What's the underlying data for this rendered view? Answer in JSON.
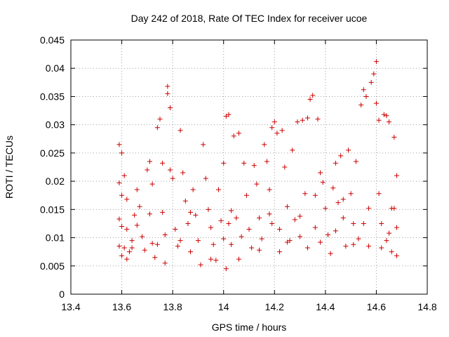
{
  "chart_data": {
    "type": "scatter",
    "title": "Day 242 of 2018, Rate Of TEC Index for receiver ucoe",
    "xlabel": "GPS time / hours",
    "ylabel": "ROTI / TECUs",
    "xlim": [
      13.4,
      14.8
    ],
    "ylim": [
      0,
      0.045
    ],
    "x_ticks": [
      13.4,
      13.6,
      13.8,
      14,
      14.2,
      14.4,
      14.6,
      14.8
    ],
    "x_tick_labels": [
      "13.4",
      "13.6",
      "13.8",
      "14",
      "14.2",
      "14.4",
      "14.6",
      "14.8"
    ],
    "y_ticks": [
      0,
      0.005,
      0.01,
      0.015,
      0.02,
      0.025,
      0.03,
      0.035,
      0.04,
      0.045
    ],
    "y_tick_labels": [
      "0",
      "0.005",
      "0.01",
      "0.015",
      "0.02",
      "0.025",
      "0.03",
      "0.035",
      "0.04",
      "0.045"
    ],
    "grid": true,
    "marker": "+",
    "series": [
      {
        "name": "ROTI",
        "color": "#cc0000",
        "points": [
          [
            13.59,
            0.0265
          ],
          [
            13.6,
            0.025
          ],
          [
            13.59,
            0.0197
          ],
          [
            13.61,
            0.021
          ],
          [
            13.6,
            0.0175
          ],
          [
            13.62,
            0.0168
          ],
          [
            13.59,
            0.0133
          ],
          [
            13.6,
            0.012
          ],
          [
            13.62,
            0.0115
          ],
          [
            13.59,
            0.0085
          ],
          [
            13.61,
            0.0082
          ],
          [
            13.63,
            0.0075
          ],
          [
            13.6,
            0.0068
          ],
          [
            13.62,
            0.0062
          ],
          [
            13.64,
            0.0095
          ],
          [
            13.65,
            0.014
          ],
          [
            13.66,
            0.0185
          ],
          [
            13.67,
            0.0155
          ],
          [
            13.68,
            0.0102
          ],
          [
            13.69,
            0.0078
          ],
          [
            13.7,
            0.022
          ],
          [
            13.71,
            0.0235
          ],
          [
            13.72,
            0.0195
          ],
          [
            13.72,
            0.009
          ],
          [
            13.73,
            0.0065
          ],
          [
            13.74,
            0.0295
          ],
          [
            13.75,
            0.031
          ],
          [
            13.76,
            0.0232
          ],
          [
            13.76,
            0.0145
          ],
          [
            13.77,
            0.0105
          ],
          [
            13.77,
            0.0055
          ],
          [
            13.78,
            0.0368
          ],
          [
            13.78,
            0.0355
          ],
          [
            13.79,
            0.033
          ],
          [
            13.79,
            0.022
          ],
          [
            13.8,
            0.0205
          ],
          [
            13.81,
            0.0115
          ],
          [
            13.82,
            0.0085
          ],
          [
            13.83,
            0.029
          ],
          [
            13.84,
            0.0215
          ],
          [
            13.85,
            0.0165
          ],
          [
            13.86,
            0.0125
          ],
          [
            13.87,
            0.0075
          ],
          [
            13.88,
            0.0185
          ],
          [
            13.89,
            0.014
          ],
          [
            13.9,
            0.0095
          ],
          [
            13.91,
            0.0052
          ],
          [
            13.92,
            0.0265
          ],
          [
            13.93,
            0.0205
          ],
          [
            13.94,
            0.015
          ],
          [
            13.95,
            0.0118
          ],
          [
            13.96,
            0.0088
          ],
          [
            13.97,
            0.006
          ],
          [
            13.98,
            0.0185
          ],
          [
            13.99,
            0.013
          ],
          [
            14.0,
            0.0232
          ],
          [
            14.0,
            0.0098
          ],
          [
            14.01,
            0.0315
          ],
          [
            14.01,
            0.0045
          ],
          [
            14.02,
            0.0318
          ],
          [
            14.02,
            0.0125
          ],
          [
            14.03,
            0.0088
          ],
          [
            14.04,
            0.028
          ],
          [
            14.05,
            0.0135
          ],
          [
            14.06,
            0.0285
          ],
          [
            14.06,
            0.0062
          ],
          [
            14.08,
            0.0232
          ],
          [
            14.09,
            0.0175
          ],
          [
            14.1,
            0.0115
          ],
          [
            14.11,
            0.0082
          ],
          [
            14.12,
            0.0228
          ],
          [
            14.13,
            0.0195
          ],
          [
            14.14,
            0.0135
          ],
          [
            14.15,
            0.0098
          ],
          [
            14.16,
            0.0265
          ],
          [
            14.17,
            0.0235
          ],
          [
            14.18,
            0.0185
          ],
          [
            14.19,
            0.0295
          ],
          [
            14.19,
            0.0125
          ],
          [
            14.2,
            0.0305
          ],
          [
            14.21,
            0.0285
          ],
          [
            14.22,
            0.0115
          ],
          [
            14.22,
            0.0075
          ],
          [
            14.23,
            0.029
          ],
          [
            14.24,
            0.0225
          ],
          [
            14.25,
            0.0155
          ],
          [
            14.26,
            0.0095
          ],
          [
            14.27,
            0.0255
          ],
          [
            14.28,
            0.0132
          ],
          [
            14.29,
            0.0305
          ],
          [
            14.3,
            0.0102
          ],
          [
            14.31,
            0.0308
          ],
          [
            14.32,
            0.0178
          ],
          [
            14.33,
            0.0312
          ],
          [
            14.33,
            0.0082
          ],
          [
            14.34,
            0.0345
          ],
          [
            14.35,
            0.0352
          ],
          [
            14.36,
            0.0175
          ],
          [
            14.36,
            0.0118
          ],
          [
            14.37,
            0.031
          ],
          [
            14.38,
            0.0215
          ],
          [
            14.39,
            0.0198
          ],
          [
            14.4,
            0.0152
          ],
          [
            14.41,
            0.0105
          ],
          [
            14.42,
            0.0072
          ],
          [
            14.43,
            0.0188
          ],
          [
            14.44,
            0.0232
          ],
          [
            14.45,
            0.0162
          ],
          [
            14.46,
            0.0245
          ],
          [
            14.47,
            0.0135
          ],
          [
            14.48,
            0.0085
          ],
          [
            14.49,
            0.0255
          ],
          [
            14.5,
            0.0178
          ],
          [
            14.51,
            0.0125
          ],
          [
            14.52,
            0.0235
          ],
          [
            14.53,
            0.0098
          ],
          [
            14.54,
            0.0335
          ],
          [
            14.55,
            0.0362
          ],
          [
            14.56,
            0.035
          ],
          [
            14.57,
            0.0152
          ],
          [
            14.57,
            0.0085
          ],
          [
            14.58,
            0.0375
          ],
          [
            14.59,
            0.039
          ],
          [
            14.6,
            0.0412
          ],
          [
            14.6,
            0.0338
          ],
          [
            14.61,
            0.0308
          ],
          [
            14.61,
            0.0178
          ],
          [
            14.62,
            0.0125
          ],
          [
            14.63,
            0.0318
          ],
          [
            14.64,
            0.0316
          ],
          [
            14.64,
            0.0095
          ],
          [
            14.65,
            0.0305
          ],
          [
            14.66,
            0.0152
          ],
          [
            14.66,
            0.0075
          ],
          [
            14.67,
            0.0278
          ],
          [
            14.67,
            0.0152
          ],
          [
            14.68,
            0.021
          ],
          [
            14.68,
            0.0118
          ],
          [
            14.68,
            0.0068
          ],
          [
            13.64,
            0.0082
          ],
          [
            13.66,
            0.0122
          ],
          [
            13.71,
            0.0142
          ],
          [
            13.74,
            0.0088
          ],
          [
            13.83,
            0.0095
          ],
          [
            13.87,
            0.0145
          ],
          [
            13.95,
            0.0062
          ],
          [
            14.03,
            0.0148
          ],
          [
            14.07,
            0.0102
          ],
          [
            14.14,
            0.0078
          ],
          [
            14.18,
            0.0142
          ],
          [
            14.25,
            0.0092
          ],
          [
            14.3,
            0.0138
          ],
          [
            14.38,
            0.0092
          ],
          [
            14.44,
            0.0112
          ],
          [
            14.47,
            0.0168
          ],
          [
            14.51,
            0.0088
          ],
          [
            14.55,
            0.0125
          ],
          [
            14.62,
            0.0082
          ],
          [
            14.65,
            0.0108
          ]
        ]
      }
    ]
  }
}
